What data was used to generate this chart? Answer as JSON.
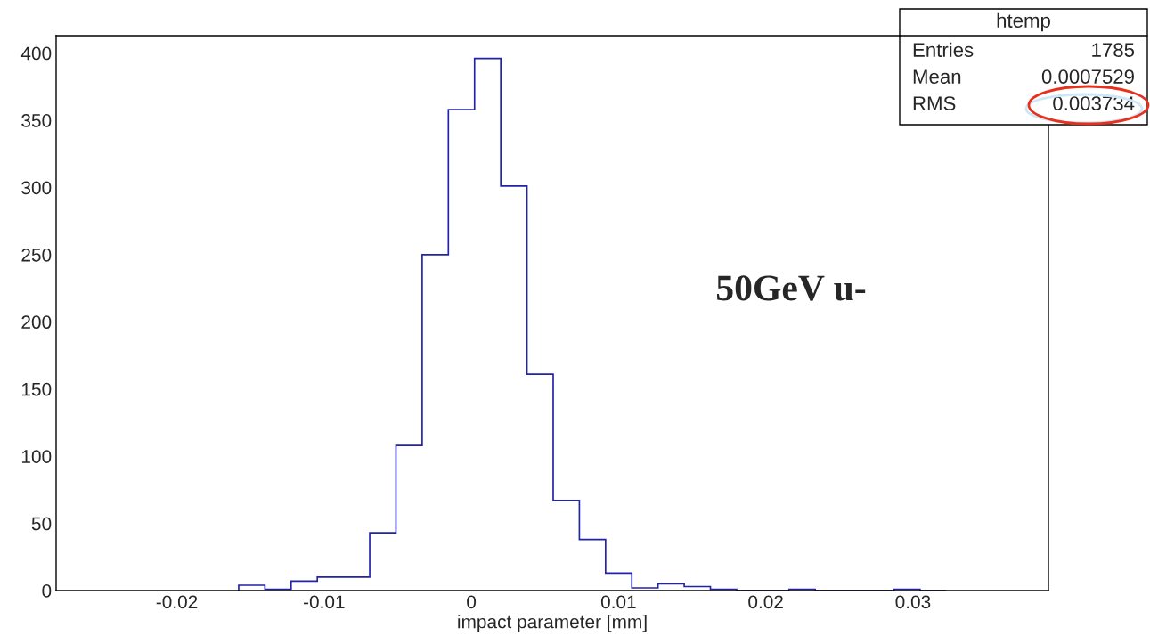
{
  "chart_data": {
    "type": "histogram",
    "xlabel": "impact parameter [mm]",
    "bins": [
      -0.0158,
      -0.01402,
      -0.01224,
      -0.01046,
      -0.00868,
      -0.0069,
      -0.00512,
      -0.00334,
      -0.00156,
      0.00022,
      0.002,
      0.00378,
      0.00556,
      0.00734,
      0.00912,
      0.0109,
      0.01268,
      0.01446,
      0.01624,
      0.01802,
      0.0198,
      0.02158,
      0.02336,
      0.02514,
      0.02692,
      0.0287,
      0.03048,
      0.03226
    ],
    "values": [
      4,
      1,
      7,
      10,
      10,
      43,
      108,
      250,
      358,
      396,
      301,
      161,
      67,
      38,
      13,
      2,
      5,
      3,
      1,
      0,
      0,
      1,
      0,
      0,
      0,
      1,
      0
    ],
    "color": "#2222aa",
    "xlim": [
      -0.0282,
      0.0392
    ],
    "xticks": [
      -0.02,
      -0.01,
      0,
      0.01,
      0.02,
      0.03
    ],
    "ylim": [
      0,
      413
    ],
    "yticks": [
      0,
      50,
      100,
      150,
      200,
      250,
      300,
      350,
      400
    ],
    "grid": false,
    "annotations": [
      "htemp",
      "Entries",
      "1785",
      "Mean",
      "0.0007529",
      "RMS",
      "0.003734",
      "50GeV u-"
    ]
  }
}
